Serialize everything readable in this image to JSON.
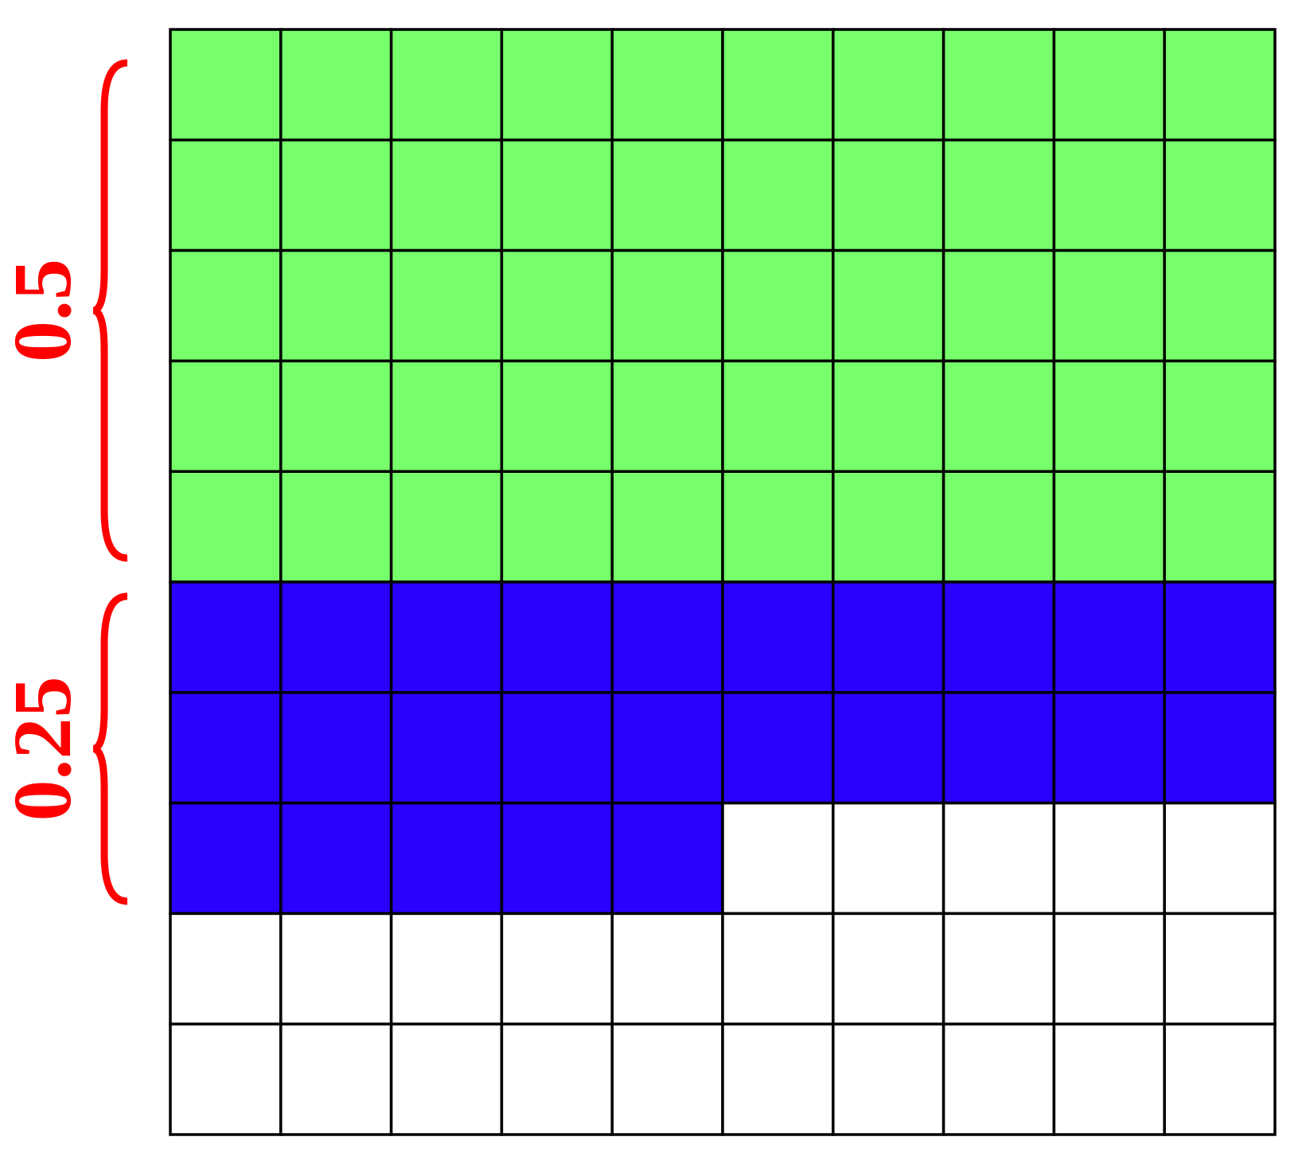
{
  "parts": [
    {
      "value": 0.5,
      "color": "#77ff6b"
    },
    {
      "value": 0.25,
      "color": "#2a00ff"
    }
  ]
}
